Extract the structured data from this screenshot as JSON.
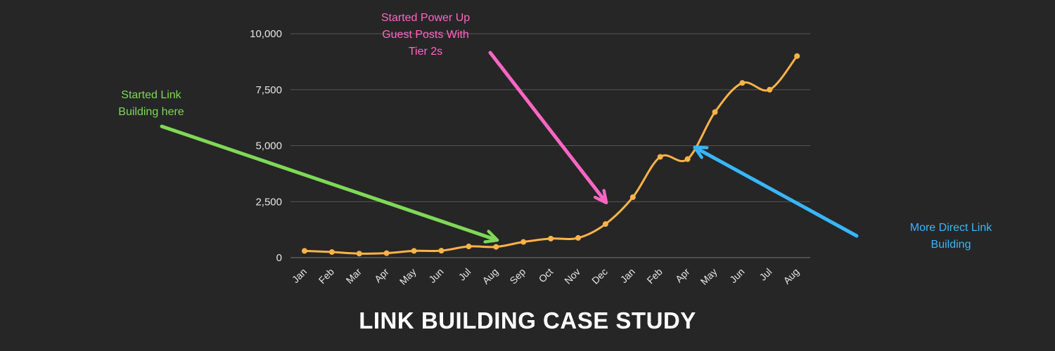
{
  "chart_data": {
    "type": "line",
    "title": "LINK BUILDING CASE STUDY",
    "categories": [
      "Jan",
      "Feb",
      "Mar",
      "Apr",
      "May",
      "Jun",
      "Jul",
      "Aug",
      "Sep",
      "Oct",
      "Nov",
      "Dec",
      "Jan",
      "Feb",
      "Apr",
      "May",
      "Jun",
      "Jul",
      "Aug"
    ],
    "series": [
      {
        "values": [
          300,
          250,
          180,
          200,
          300,
          310,
          500,
          480,
          700,
          850,
          880,
          1500,
          2700,
          4500,
          4400,
          6500,
          7800,
          7500,
          9000
        ]
      }
    ],
    "ylim": [
      0,
      10000
    ],
    "yticks": [
      0,
      2500,
      5000,
      7500,
      10000
    ],
    "ytick_labels": [
      "0",
      "2,500",
      "5,000",
      "7,500",
      "10,000"
    ],
    "grid": true,
    "colors": {
      "line": "#ffb347",
      "grid": "#555555",
      "background": "#262626"
    },
    "annotations": [
      {
        "id": "green",
        "lines": [
          "Started Link",
          "Building here"
        ],
        "color": "#7ed957",
        "target_index": 7,
        "target_value": 800
      },
      {
        "id": "pink",
        "lines": [
          "Started Power Up",
          "Guest Posts With",
          "Tier 2s"
        ],
        "color": "#ff66c4",
        "target_index": 11,
        "target_value": 2500
      },
      {
        "id": "blue",
        "lines": [
          "More Direct Link",
          "Building"
        ],
        "color": "#38b6ff",
        "target_index": 14.3,
        "target_value": 4900
      }
    ]
  }
}
